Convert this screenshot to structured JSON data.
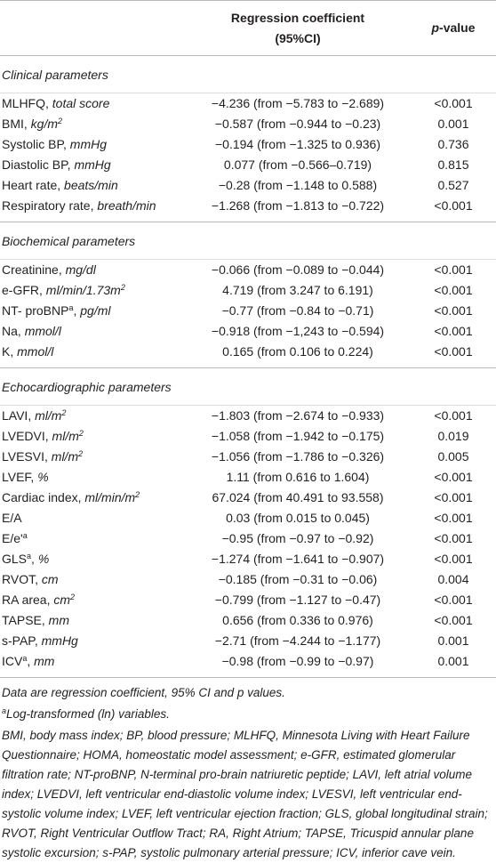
{
  "header": {
    "coefficient": [
      "Regression coefficient",
      "(95%CI)"
    ],
    "p_value": [
      {
        "text": "p",
        "style": "italic"
      },
      {
        "text": "-value"
      }
    ]
  },
  "sections": [
    {
      "title": "Clinical parameters",
      "rows": [
        {
          "label": [
            {
              "text": "MLHFQ, "
            },
            {
              "text": "total score",
              "style": "italic"
            }
          ],
          "coefficient": "−4.236 (from −5.783 to −2.689)",
          "p_value": "<0.001"
        },
        {
          "label": [
            {
              "text": "BMI, "
            },
            {
              "text": "kg/m",
              "style": "italic"
            },
            {
              "text": "2",
              "style": "italic-sup"
            }
          ],
          "coefficient": "−0.587 (from −0.944 to −0.23)",
          "p_value": "0.001"
        },
        {
          "label": [
            {
              "text": "Systolic BP, "
            },
            {
              "text": "mmHg",
              "style": "italic"
            }
          ],
          "coefficient": "−0.194 (from −1.325 to 0.936)",
          "p_value": "0.736"
        },
        {
          "label": [
            {
              "text": "Diastolic BP, "
            },
            {
              "text": "mmHg",
              "style": "italic"
            }
          ],
          "coefficient": "0.077 (from −0.566–0.719)",
          "p_value": "0.815"
        },
        {
          "label": [
            {
              "text": "Heart rate, "
            },
            {
              "text": "beats/min",
              "style": "italic"
            }
          ],
          "coefficient": "−0.28 (from −1.148 to 0.588)",
          "p_value": "0.527"
        },
        {
          "label": [
            {
              "text": "Respiratory rate, "
            },
            {
              "text": "breath/min",
              "style": "italic"
            }
          ],
          "coefficient": "−1.268 (from −1.813 to −0.722)",
          "p_value": "<0.001"
        }
      ]
    },
    {
      "title": "Biochemical parameters",
      "rows": [
        {
          "label": [
            {
              "text": "Creatinine, "
            },
            {
              "text": "mg/dl",
              "style": "italic"
            }
          ],
          "coefficient": "−0.066 (from −0.089 to −0.044)",
          "p_value": "<0.001"
        },
        {
          "label": [
            {
              "text": "e-GFR, "
            },
            {
              "text": "ml/min/1.73m",
              "style": "italic"
            },
            {
              "text": "2",
              "style": "italic-sup"
            }
          ],
          "coefficient": "4.719 (from 3.247 to 6.191)",
          "p_value": "<0.001"
        },
        {
          "label": [
            {
              "text": "NT- proBNP"
            },
            {
              "text": "a",
              "style": "sup"
            },
            {
              "text": ", "
            },
            {
              "text": "pg/ml",
              "style": "italic"
            }
          ],
          "coefficient": "−0.77 (from −0.84 to −0.71)",
          "p_value": "<0.001"
        },
        {
          "label": [
            {
              "text": "Na, "
            },
            {
              "text": "mmol/l",
              "style": "italic"
            }
          ],
          "coefficient": "−0.918 (from −1,243 to −0.594)",
          "p_value": "<0.001"
        },
        {
          "label": [
            {
              "text": "K, "
            },
            {
              "text": "mmol/l",
              "style": "italic"
            }
          ],
          "coefficient": "0.165 (from 0.106 to 0.224)",
          "p_value": "<0.001"
        }
      ]
    },
    {
      "title": "Echocardiographic parameters",
      "rows": [
        {
          "label": [
            {
              "text": "LAVI, "
            },
            {
              "text": "ml/m",
              "style": "italic"
            },
            {
              "text": "2",
              "style": "italic-sup"
            }
          ],
          "coefficient": "−1.803 (from −2.674 to −0.933)",
          "p_value": "<0.001"
        },
        {
          "label": [
            {
              "text": "LVEDVI, "
            },
            {
              "text": "ml/m",
              "style": "italic"
            },
            {
              "text": "2",
              "style": "italic-sup"
            }
          ],
          "coefficient": "−1.058 (from −1.942 to −0.175)",
          "p_value": "0.019"
        },
        {
          "label": [
            {
              "text": "LVESVI, "
            },
            {
              "text": "ml/m",
              "style": "italic"
            },
            {
              "text": "2",
              "style": "italic-sup"
            }
          ],
          "coefficient": "−1.056 (from −1.786 to −0.326)",
          "p_value": "0.005"
        },
        {
          "label": [
            {
              "text": "LVEF, "
            },
            {
              "text": "%",
              "style": "italic"
            }
          ],
          "coefficient": "1.11 (from 0.616 to 1.604)",
          "p_value": "<0.001"
        },
        {
          "label": [
            {
              "text": "Cardiac index, "
            },
            {
              "text": "ml/min/m",
              "style": "italic"
            },
            {
              "text": "2",
              "style": "italic-sup"
            }
          ],
          "coefficient": "67.024 (from 40.491 to 93.558)",
          "p_value": "<0.001"
        },
        {
          "label": [
            {
              "text": "E/A"
            }
          ],
          "coefficient": "0.03 (from 0.015 to 0.045)",
          "p_value": "<0.001"
        },
        {
          "label": [
            {
              "text": "E/e'"
            },
            {
              "text": "a",
              "style": "sup"
            }
          ],
          "coefficient": "−0.95 (from −0.97 to −0.92)",
          "p_value": "<0.001"
        },
        {
          "label": [
            {
              "text": "GLS"
            },
            {
              "text": "a",
              "style": "sup"
            },
            {
              "text": ", "
            },
            {
              "text": "%",
              "style": "italic"
            }
          ],
          "coefficient": "−1.274 (from −1.641 to −0.907)",
          "p_value": "<0.001"
        },
        {
          "label": [
            {
              "text": "RVOT, "
            },
            {
              "text": "cm",
              "style": "italic"
            }
          ],
          "coefficient": "−0.185 (from −0.31 to −0.06)",
          "p_value": "0.004"
        },
        {
          "label": [
            {
              "text": "RA area, "
            },
            {
              "text": "cm",
              "style": "italic"
            },
            {
              "text": "2",
              "style": "italic-sup"
            }
          ],
          "coefficient": "−0.799 (from −1.127 to −0.47)",
          "p_value": "<0.001"
        },
        {
          "label": [
            {
              "text": "TAPSE, "
            },
            {
              "text": "mm",
              "style": "italic"
            }
          ],
          "coefficient": "0.656 (from 0.336 to 0.976)",
          "p_value": "<0.001"
        },
        {
          "label": [
            {
              "text": "s-PAP, "
            },
            {
              "text": "mmHg",
              "style": "italic"
            }
          ],
          "coefficient": "−2.71 (from −4.244 to −1.177)",
          "p_value": "0.001"
        },
        {
          "label": [
            {
              "text": "ICV"
            },
            {
              "text": "a",
              "style": "sup"
            },
            {
              "text": ", "
            },
            {
              "text": "mm",
              "style": "italic"
            }
          ],
          "coefficient": "−0.98 (from −0.99 to −0.97)",
          "p_value": "0.001"
        }
      ]
    }
  ],
  "notes": [
    [
      {
        "text": "Data are regression coefficient, 95% CI and p values.",
        "style": "italic"
      }
    ],
    [
      {
        "text": "a",
        "style": "italic-sup"
      },
      {
        "text": "Log-transformed (ln) variables.",
        "style": "italic"
      }
    ],
    [
      {
        "text": "BMI, body mass index; BP, blood pressure; MLHFQ, Minnesota Living with Heart Failure Questionnaire; HOMA, homeostatic model assessment; e-GFR, estimated glomerular filtration rate; NT-proBNP, N-terminal pro-brain natriuretic peptide; LAVI, left atrial volume index; LVEDVI, left ventricular end-diastolic volume index; LVESVI, left ventricular end-systolic volume index; LVEF, left ventricular ejection fraction; GLS, global longitudinal strain; RVOT, Right Ventricular Outflow Tract; RA, Right Atrium; TAPSE, Tricuspid annular plane systolic excursion; s-PAP, systolic pulmonary arterial pressure; ICV, inferior cave vein.",
        "style": "italic"
      }
    ]
  ]
}
